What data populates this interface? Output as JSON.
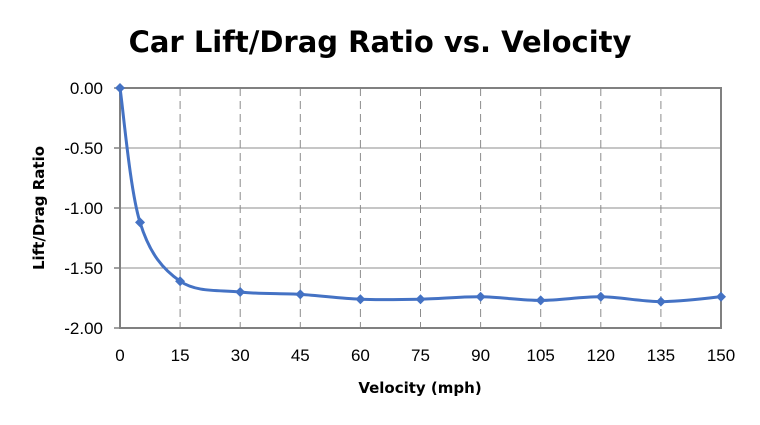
{
  "chart_data": {
    "type": "line",
    "title": "Car Lift/Drag Ratio vs. Velocity",
    "xlabel": "Velocity (mph)",
    "ylabel": "Lift/Drag Ratio",
    "xlim": [
      0,
      150
    ],
    "ylim": [
      -2.0,
      0.0
    ],
    "x_ticks": [
      0,
      15,
      30,
      45,
      60,
      75,
      90,
      105,
      120,
      135,
      150
    ],
    "x_tick_labels": [
      "0",
      "15",
      "30",
      "45",
      "60",
      "75",
      "90",
      "105",
      "120",
      "135",
      "150"
    ],
    "y_ticks": [
      0.0,
      -0.5,
      -1.0,
      -1.5,
      -2.0
    ],
    "y_tick_labels": [
      "0.00",
      "-0.50",
      "-1.00",
      "-1.50",
      "-2.00"
    ],
    "grid": {
      "horizontal": "solid",
      "vertical": "dashed"
    },
    "legend": "none",
    "smoothed": true,
    "marker": "diamond",
    "series": [
      {
        "name": "Lift/Drag Ratio",
        "color": "#4472C4",
        "x": [
          0,
          5,
          15,
          30,
          45,
          60,
          75,
          90,
          105,
          120,
          135,
          150
        ],
        "values": [
          0.0,
          -1.12,
          -1.61,
          -1.7,
          -1.72,
          -1.76,
          -1.76,
          -1.74,
          -1.77,
          -1.74,
          -1.78,
          -1.74
        ]
      }
    ]
  }
}
